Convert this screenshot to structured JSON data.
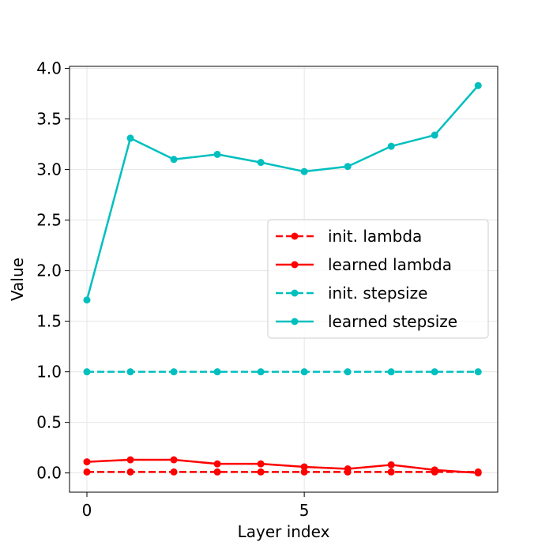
{
  "chart_data": {
    "type": "line",
    "title": "",
    "xlabel": "Layer index",
    "ylabel": "Value",
    "xlim": [
      -0.4,
      9.45
    ],
    "ylim": [
      -0.19,
      4.02
    ],
    "xticks": [
      0,
      5
    ],
    "xtick_labels": [
      "0",
      "5"
    ],
    "yticks": [
      0.0,
      0.5,
      1.0,
      1.5,
      2.0,
      2.5,
      3.0,
      3.5,
      4.0
    ],
    "ytick_labels": [
      "0.0",
      "0.5",
      "1.0",
      "1.5",
      "2.0",
      "2.5",
      "3.0",
      "3.5",
      "4.0"
    ],
    "grid": true,
    "legend_position": "center-right",
    "x": [
      0,
      1,
      2,
      3,
      4,
      5,
      6,
      7,
      8,
      9
    ],
    "series": [
      {
        "name": "init. lambda",
        "color": "#ff0000",
        "dash": "dashed",
        "values": [
          0.01,
          0.01,
          0.01,
          0.01,
          0.01,
          0.01,
          0.01,
          0.01,
          0.01,
          0.01
        ]
      },
      {
        "name": "learned lambda",
        "color": "#ff0000",
        "dash": "solid",
        "values": [
          0.11,
          0.13,
          0.13,
          0.09,
          0.09,
          0.06,
          0.04,
          0.08,
          0.03,
          0.0
        ]
      },
      {
        "name": "init. stepsize",
        "color": "#00bfbf",
        "dash": "dashed",
        "values": [
          1.0,
          1.0,
          1.0,
          1.0,
          1.0,
          1.0,
          1.0,
          1.0,
          1.0,
          1.0
        ]
      },
      {
        "name": "learned stepsize",
        "color": "#00bfbf",
        "dash": "solid",
        "values": [
          1.71,
          3.31,
          3.1,
          3.15,
          3.07,
          2.98,
          3.03,
          3.23,
          3.34,
          3.83
        ]
      }
    ]
  }
}
